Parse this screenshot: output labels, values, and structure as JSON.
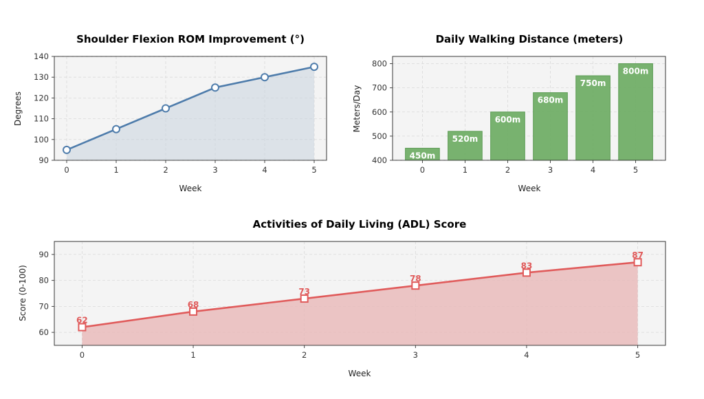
{
  "chart_data": [
    {
      "id": "rom",
      "type": "line",
      "title": "Shoulder Flexion ROM Improvement (°)",
      "xlabel": "Week",
      "ylabel": "Degrees",
      "x": [
        0,
        1,
        2,
        3,
        4,
        5
      ],
      "values": [
        95,
        105,
        115,
        125,
        130,
        135
      ],
      "xlim": [
        -0.25,
        5.25
      ],
      "ylim": [
        90,
        140
      ],
      "yticks": [
        90,
        100,
        110,
        120,
        130,
        140
      ],
      "grid": true,
      "color": "#4e7cab",
      "fill_color": "#c8d3df",
      "marker": "circle"
    },
    {
      "id": "walk",
      "type": "bar",
      "title": "Daily Walking Distance (meters)",
      "xlabel": "Week",
      "ylabel": "Meters/Day",
      "categories": [
        "0",
        "1",
        "2",
        "3",
        "4",
        "5"
      ],
      "values": [
        450,
        520,
        600,
        680,
        750,
        800
      ],
      "data_labels": [
        "450m",
        "520m",
        "600m",
        "680m",
        "750m",
        "800m"
      ],
      "ylim": [
        400,
        830
      ],
      "yticks": [
        400,
        500,
        600,
        700,
        800
      ],
      "grid": true,
      "color": "#6aab61"
    },
    {
      "id": "adl",
      "type": "area",
      "title": "Activities of Daily Living (ADL) Score",
      "xlabel": "Week",
      "ylabel": "Score (0-100)",
      "x": [
        0,
        1,
        2,
        3,
        4,
        5
      ],
      "values": [
        62,
        68,
        73,
        78,
        83,
        87
      ],
      "data_labels": [
        "62",
        "68",
        "73",
        "78",
        "83",
        "87"
      ],
      "xlim": [
        -0.25,
        5.25
      ],
      "ylim": [
        55,
        95
      ],
      "yticks": [
        60,
        70,
        80,
        90
      ],
      "grid": true,
      "color": "#e05a5a",
      "fill_color": "#e8b4b4",
      "marker": "square"
    }
  ]
}
